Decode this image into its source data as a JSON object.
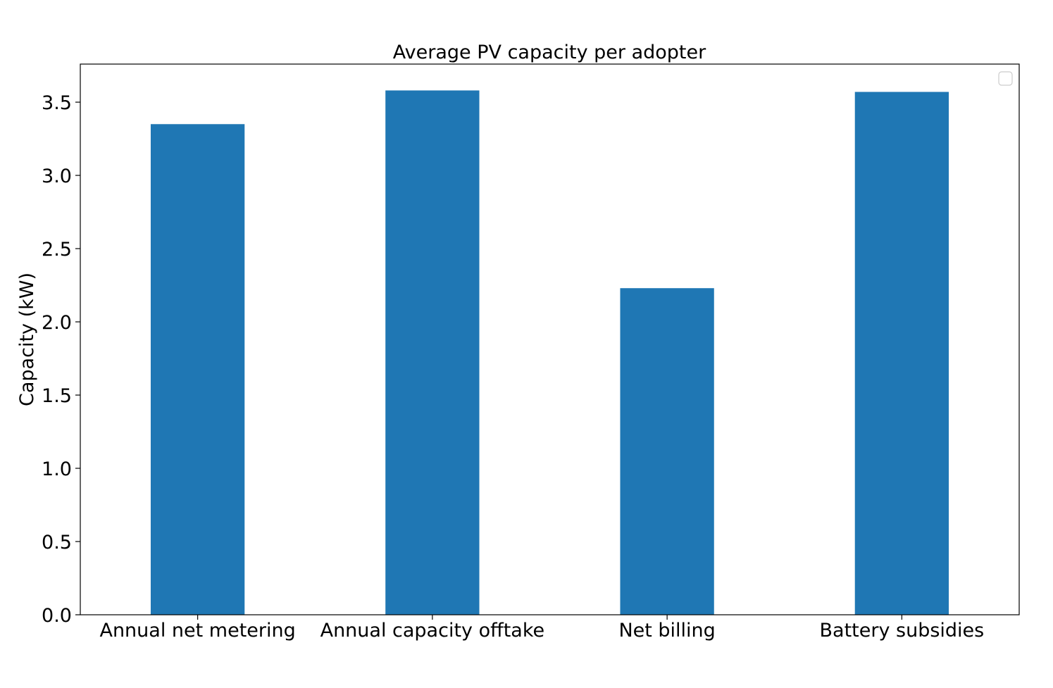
{
  "chart_data": {
    "type": "bar",
    "title": "Average PV capacity per adopter",
    "xlabel": "",
    "ylabel": "Capacity (kW)",
    "categories": [
      "Annual net metering",
      "Annual capacity offtake",
      "Net billing",
      "Battery subsidies"
    ],
    "values": [
      3.35,
      3.58,
      2.23,
      3.57
    ],
    "ylim": [
      0,
      3.76
    ],
    "yticks": [
      "0.0",
      "0.5",
      "1.0",
      "1.5",
      "2.0",
      "2.5",
      "3.0",
      "3.5"
    ],
    "grid": false,
    "legend": {
      "placement": "top-right",
      "entries": []
    },
    "colors": {
      "bar": "#1f77b4"
    }
  }
}
